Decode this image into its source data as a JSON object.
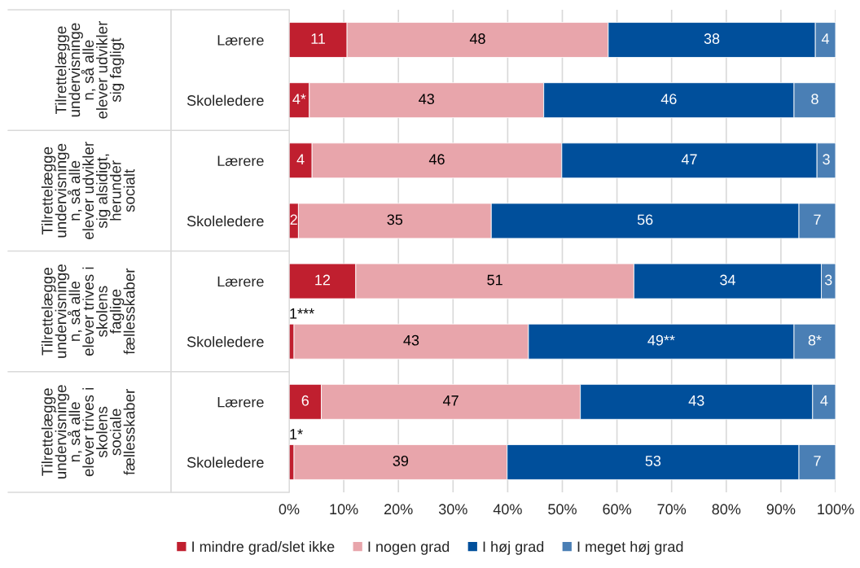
{
  "chart_data": {
    "type": "bar",
    "orientation": "horizontal",
    "stacked": true,
    "categories": [
      "Lærere",
      "Skoleledere",
      "Lærere",
      "Skoleledere",
      "Lærere",
      "Skoleledere",
      "Lærere",
      "Skoleledere"
    ],
    "annotations": [
      "Tilrettelægge\nundervisninge\nn, så alle\nelever udvikler\nsig fagligt",
      "Tilrettelægge\nundervisninge\nn, så alle\nelever udvikler\nsig alsidigt,\nherunder\nsocialt",
      "Tilrettelægge\nundervisninge\nn, så alle\nelever trives i\nskolens\nfaglige\nfællesskaber",
      "Tilrettelægge\nundervisninge\nn, så alle\nelever trives i\nskolens\nsociale\nfællesskaber"
    ],
    "series": [
      {
        "name": "I mindre grad/slet ikke",
        "color": "#c01f2f",
        "values": [
          10.6,
          3.7,
          4.2,
          1.7,
          12.2,
          0.9,
          5.9,
          0.9
        ],
        "value_labels": [
          "11",
          "4*",
          "4",
          "2",
          "12",
          "1***",
          "6",
          "1*"
        ]
      },
      {
        "name": "I nogen grad",
        "color": "#e8a5ab",
        "values": [
          47.8,
          42.9,
          45.7,
          35.3,
          50.9,
          42.9,
          47.4,
          39.0
        ],
        "value_labels": [
          "48",
          "43",
          "46",
          "35",
          "51",
          "43",
          "47",
          "39"
        ]
      },
      {
        "name": "I høj grad",
        "color": "#004f9b",
        "values": [
          37.9,
          45.8,
          46.7,
          56.3,
          34.3,
          48.6,
          42.5,
          53.4
        ],
        "value_labels": [
          "38",
          "46",
          "47",
          "56",
          "34",
          "49**",
          "43",
          "53"
        ]
      },
      {
        "name": "I meget høj grad",
        "color": "#4a7fb5",
        "values": [
          3.7,
          7.6,
          3.4,
          6.7,
          2.6,
          7.6,
          4.2,
          6.7
        ],
        "value_labels": [
          "4",
          "8",
          "3",
          "7",
          "3",
          "8*",
          "4",
          "7"
        ]
      }
    ],
    "xlim": [
      0,
      100
    ],
    "xticks": [
      {
        "value": 0,
        "label": "0%"
      },
      {
        "value": 10,
        "label": "10%"
      },
      {
        "value": 20,
        "label": "20%"
      },
      {
        "value": 30,
        "label": "30%"
      },
      {
        "value": 40,
        "label": "40%"
      },
      {
        "value": 50,
        "label": "50%"
      },
      {
        "value": 60,
        "label": "60%"
      },
      {
        "value": 70,
        "label": "70%"
      },
      {
        "value": 80,
        "label": "80%"
      },
      {
        "value": 90,
        "label": "90%"
      },
      {
        "value": 100,
        "label": "100%"
      }
    ],
    "grid": "x",
    "legend": "bottom"
  }
}
